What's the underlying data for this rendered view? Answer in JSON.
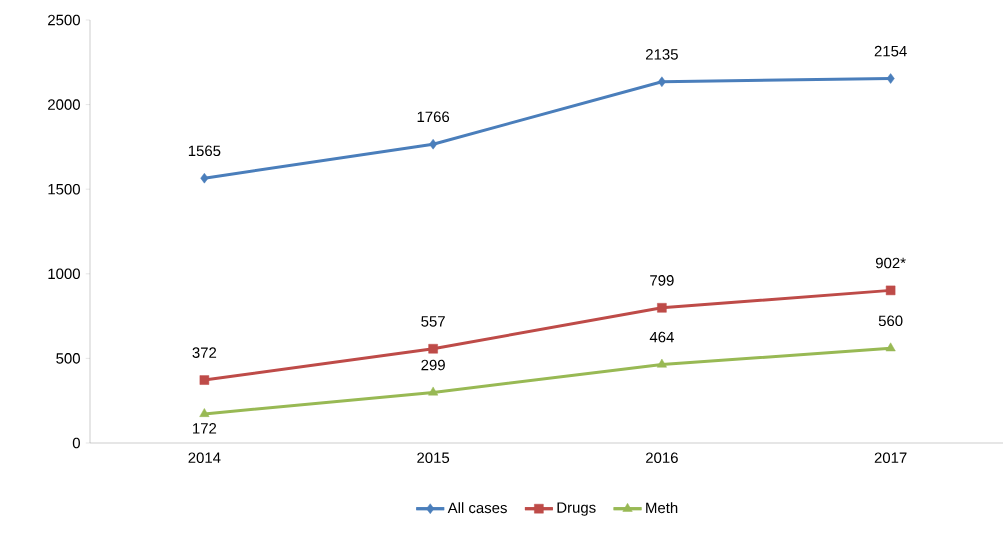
{
  "chart_data": {
    "type": "line",
    "categories": [
      "2014",
      "2015",
      "2016",
      "2017"
    ],
    "series": [
      {
        "name": "All cases",
        "color": "#4a7ebb",
        "marker": "diamond",
        "values": [
          1565,
          1766,
          2135,
          2154
        ],
        "value_labels": [
          "1565",
          "1766",
          "2135",
          "2154"
        ]
      },
      {
        "name": "Drugs",
        "color": "#be4b48",
        "marker": "square",
        "values": [
          372,
          557,
          799,
          902
        ],
        "value_labels": [
          "372",
          "557",
          "799",
          "902*"
        ]
      },
      {
        "name": "Meth",
        "color": "#98b954",
        "marker": "triangle",
        "values": [
          172,
          299,
          464,
          560
        ],
        "value_labels": [
          "172",
          "299",
          "464",
          "560"
        ]
      }
    ],
    "ylim": [
      0,
      2500
    ],
    "yticks": [
      0,
      500,
      1000,
      1500,
      2000,
      2500
    ],
    "grid": false,
    "legend": "bottom",
    "line_style": "solid"
  }
}
